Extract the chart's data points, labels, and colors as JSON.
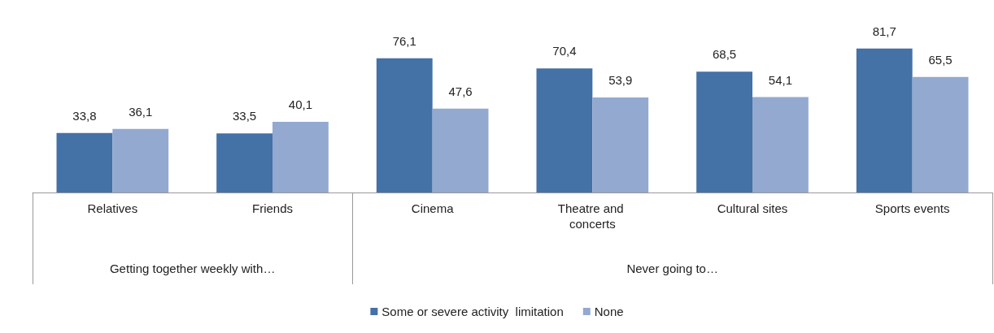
{
  "chart_data": {
    "type": "bar",
    "categories": [
      "Relatives",
      "Friends",
      "Cinema",
      "Theatre and concerts",
      "Cultural sites",
      "Sports events"
    ],
    "series": [
      {
        "name": "Some or severe activity  limitation",
        "color": "#4471a6",
        "values": [
          33.8,
          33.5,
          76.1,
          70.4,
          68.5,
          81.7
        ],
        "value_labels": [
          "33,8",
          "33,5",
          "76,1",
          "70,4",
          "68,5",
          "81,7"
        ]
      },
      {
        "name": "None",
        "color": "#93a9cf",
        "values": [
          36.1,
          40.1,
          47.6,
          53.9,
          54.1,
          65.5
        ],
        "value_labels": [
          "36,1",
          "40,1",
          "47,6",
          "53,9",
          "54,1",
          "65,5"
        ]
      }
    ],
    "annotations": [
      "Getting together weekly with…",
      "Never going to…"
    ],
    "legend": "bottom",
    "grid": false
  }
}
